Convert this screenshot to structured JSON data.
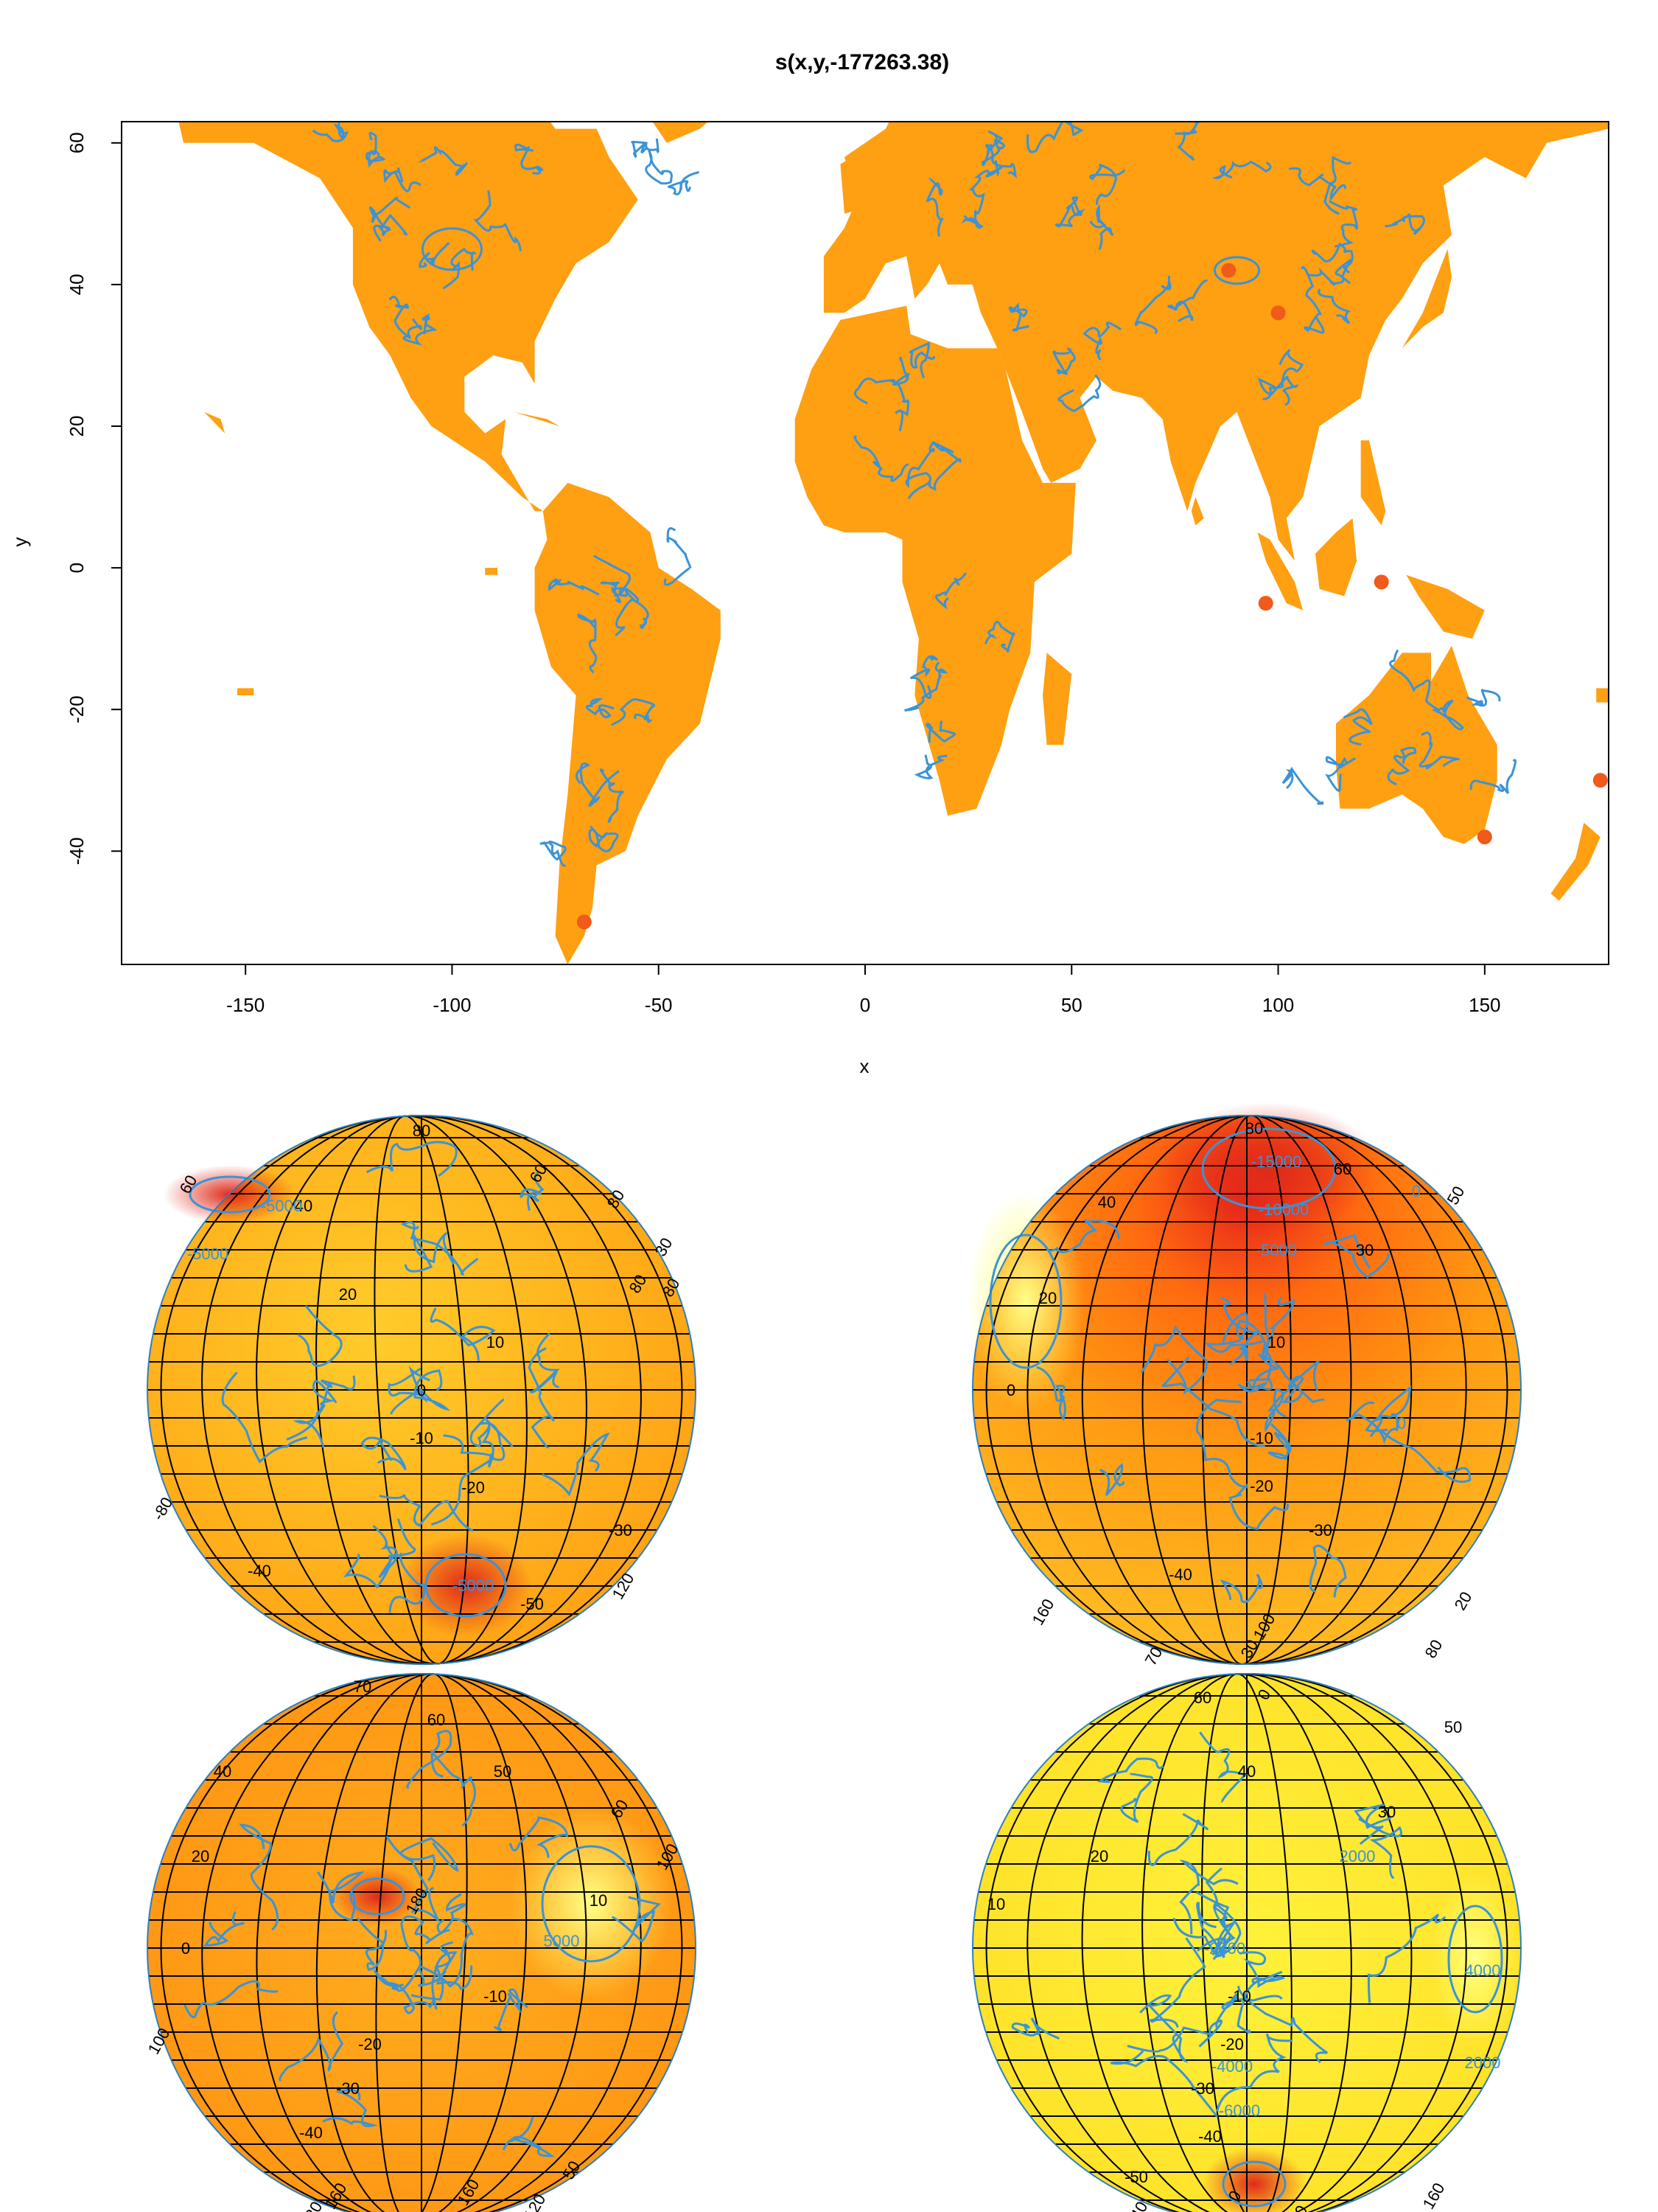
{
  "chart_data": [
    {
      "type": "heatmap",
      "title": "s(x,y,-177263.38)",
      "xlabel": "x",
      "ylabel": "y",
      "xlim": [
        -180,
        180
      ],
      "ylim": [
        -56,
        63
      ],
      "x_ticks": [
        "-150",
        "-100",
        "-50",
        "0",
        "50",
        "100",
        "150"
      ],
      "y_ticks": [
        "-40",
        "-20",
        "0",
        "20",
        "40",
        "60"
      ],
      "contours": true,
      "colors": {
        "low": "#ffff00",
        "mid": "#ffa500",
        "high": "#e8201a",
        "contour": "#3b93d6"
      }
    },
    {
      "type": "heatmap",
      "projection": "orthographic",
      "panel": "globe-top-left",
      "lat_labels": [
        "80",
        "40",
        "20",
        "10",
        "0",
        "-10",
        "-20",
        "-30",
        "-40",
        "-50"
      ],
      "lon_labels": [
        "60",
        "80",
        "30",
        "80",
        "-80",
        "60",
        "80",
        "120"
      ],
      "contour_labels": [
        "-5000",
        "-5000",
        "-5000"
      ]
    },
    {
      "type": "heatmap",
      "projection": "orthographic",
      "panel": "globe-top-right",
      "lat_labels": [
        "80",
        "60",
        "40",
        "30",
        "20",
        "10",
        "0",
        "-10",
        "-20",
        "-30",
        "-40"
      ],
      "lon_labels": [
        "160",
        "100",
        "30",
        "80",
        "70",
        "20",
        "50"
      ],
      "contour_labels": [
        "-15000",
        "-10000",
        "-5000",
        "0",
        "0"
      ]
    },
    {
      "type": "heatmap",
      "projection": "orthographic",
      "panel": "globe-bottom-left",
      "lat_labels": [
        "70",
        "60",
        "50",
        "40",
        "20",
        "10",
        "0",
        "-10",
        "-20",
        "-30",
        "-40"
      ],
      "lon_labels": [
        "180",
        "100",
        "60",
        "100",
        "160",
        "160",
        "120",
        "50",
        "20"
      ],
      "contour_labels": [
        "5000"
      ]
    },
    {
      "type": "heatmap",
      "projection": "orthographic",
      "panel": "globe-bottom-right",
      "lat_labels": [
        "60",
        "50",
        "40",
        "30",
        "20",
        "10",
        "-10",
        "-20",
        "-30",
        "-40",
        "-50"
      ],
      "lon_labels": [
        "40",
        "160",
        "0",
        "0",
        "0"
      ],
      "contour_labels": [
        "2000",
        "-2000",
        "-4000",
        "-6000",
        "4000",
        "2000"
      ]
    }
  ]
}
